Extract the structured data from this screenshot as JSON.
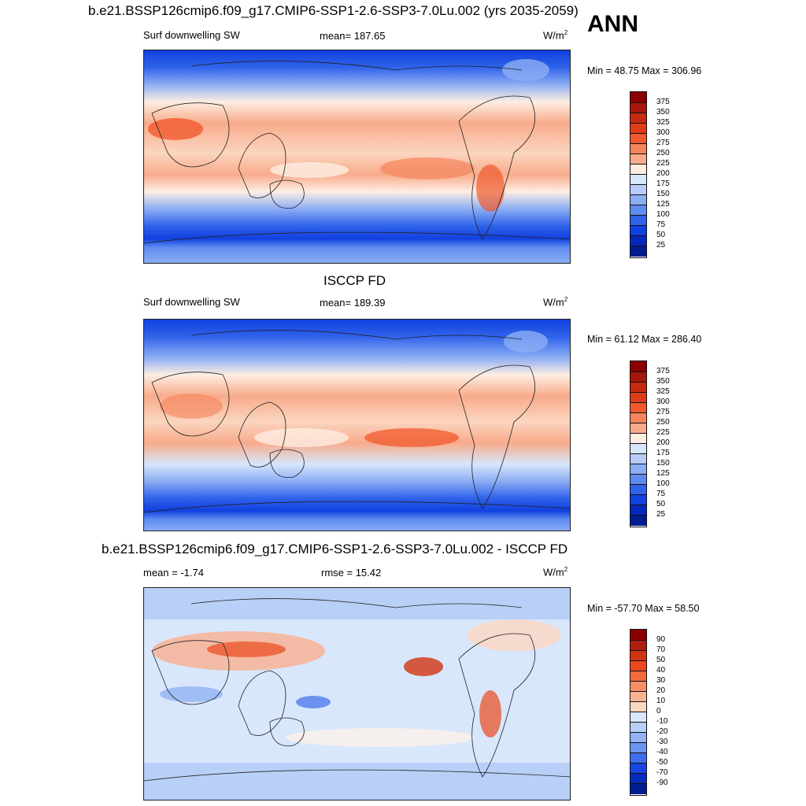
{
  "top_title": "b.e21.BSSP126cmip6.f09_g17.CMIP6-SSP1-2.6-SSP3-7.0Lu.002 (yrs 2035-2059)",
  "season": "ANN",
  "panels": [
    {
      "title": "",
      "left_label": "Surf downwelling SW",
      "center_label": "mean= 187.65",
      "units": "W/m",
      "units_sup": "2",
      "minmax": "Min =  48.75 Max = 306.96",
      "levels": [
        "375",
        "350",
        "325",
        "300",
        "275",
        "250",
        "225",
        "200",
        "175",
        "150",
        "125",
        "100",
        "75",
        "50",
        "25"
      ]
    },
    {
      "title": "ISCCP FD",
      "left_label": "Surf downwelling SW",
      "center_label": "mean= 189.39",
      "units": "W/m",
      "units_sup": "2",
      "minmax": "Min =  61.12 Max = 286.40",
      "levels": [
        "375",
        "350",
        "325",
        "300",
        "275",
        "250",
        "225",
        "200",
        "175",
        "150",
        "125",
        "100",
        "75",
        "50",
        "25"
      ]
    },
    {
      "title": "b.e21.BSSP126cmip6.f09_g17.CMIP6-SSP1-2.6-SSP3-7.0Lu.002 - ISCCP FD",
      "left_label": "mean =  -1.74",
      "center_label": "rmse =  15.42",
      "units": "W/m",
      "units_sup": "2",
      "minmax": "Min = -57.70 Max =  58.50",
      "levels": [
        "90",
        "70",
        "50",
        "40",
        "30",
        "20",
        "10",
        "0",
        "-10",
        "-20",
        "-30",
        "-40",
        "-50",
        "-70",
        "-90"
      ]
    }
  ],
  "colors": {
    "abs_scale": [
      "#8b0000",
      "#a8170b",
      "#c62a10",
      "#e03c17",
      "#f05a2e",
      "#f5845c",
      "#f8ab8b",
      "#fbd5bf",
      "#fdeee2",
      "#d7e6fb",
      "#b5cdf8",
      "#8daef4",
      "#5f8cf0",
      "#3063ea",
      "#1040e0",
      "#0528bc",
      "#001c93"
    ],
    "diff_scale": [
      "#8b0000",
      "#b01e0c",
      "#d23412",
      "#ea4a1e",
      "#f26a3e",
      "#f58f6a",
      "#f8b395",
      "#fbd7c4",
      "#fdf1e8",
      "#d8e7fc",
      "#b8cff8",
      "#93b3f4",
      "#6b95f1",
      "#3f6eed",
      "#1745e3",
      "#062cbe",
      "#001c93"
    ]
  },
  "chart_data": [
    {
      "type": "heatmap",
      "title": "b.e21.BSSP126cmip6.f09_g17.CMIP6-SSP1-2.6-SSP3-7.0Lu.002 (yrs 2035-2059)",
      "variable": "Surf downwelling SW",
      "units": "W/m2",
      "mean": 187.65,
      "min": 48.75,
      "max": 306.96,
      "contour_levels": [
        25,
        50,
        75,
        100,
        125,
        150,
        175,
        200,
        225,
        250,
        275,
        300,
        325,
        350,
        375
      ]
    },
    {
      "type": "heatmap",
      "title": "ISCCP FD",
      "variable": "Surf downwelling SW",
      "units": "W/m2",
      "mean": 189.39,
      "min": 61.12,
      "max": 286.4,
      "contour_levels": [
        25,
        50,
        75,
        100,
        125,
        150,
        175,
        200,
        225,
        250,
        275,
        300,
        325,
        350,
        375
      ]
    },
    {
      "type": "heatmap",
      "title": "b.e21.BSSP126cmip6.f09_g17.CMIP6-SSP1-2.6-SSP3-7.0Lu.002 - ISCCP FD",
      "units": "W/m2",
      "mean": -1.74,
      "rmse": 15.42,
      "min": -57.7,
      "max": 58.5,
      "contour_levels": [
        -90,
        -70,
        -50,
        -40,
        -30,
        -20,
        -10,
        0,
        10,
        20,
        30,
        40,
        50,
        70,
        90
      ]
    }
  ]
}
